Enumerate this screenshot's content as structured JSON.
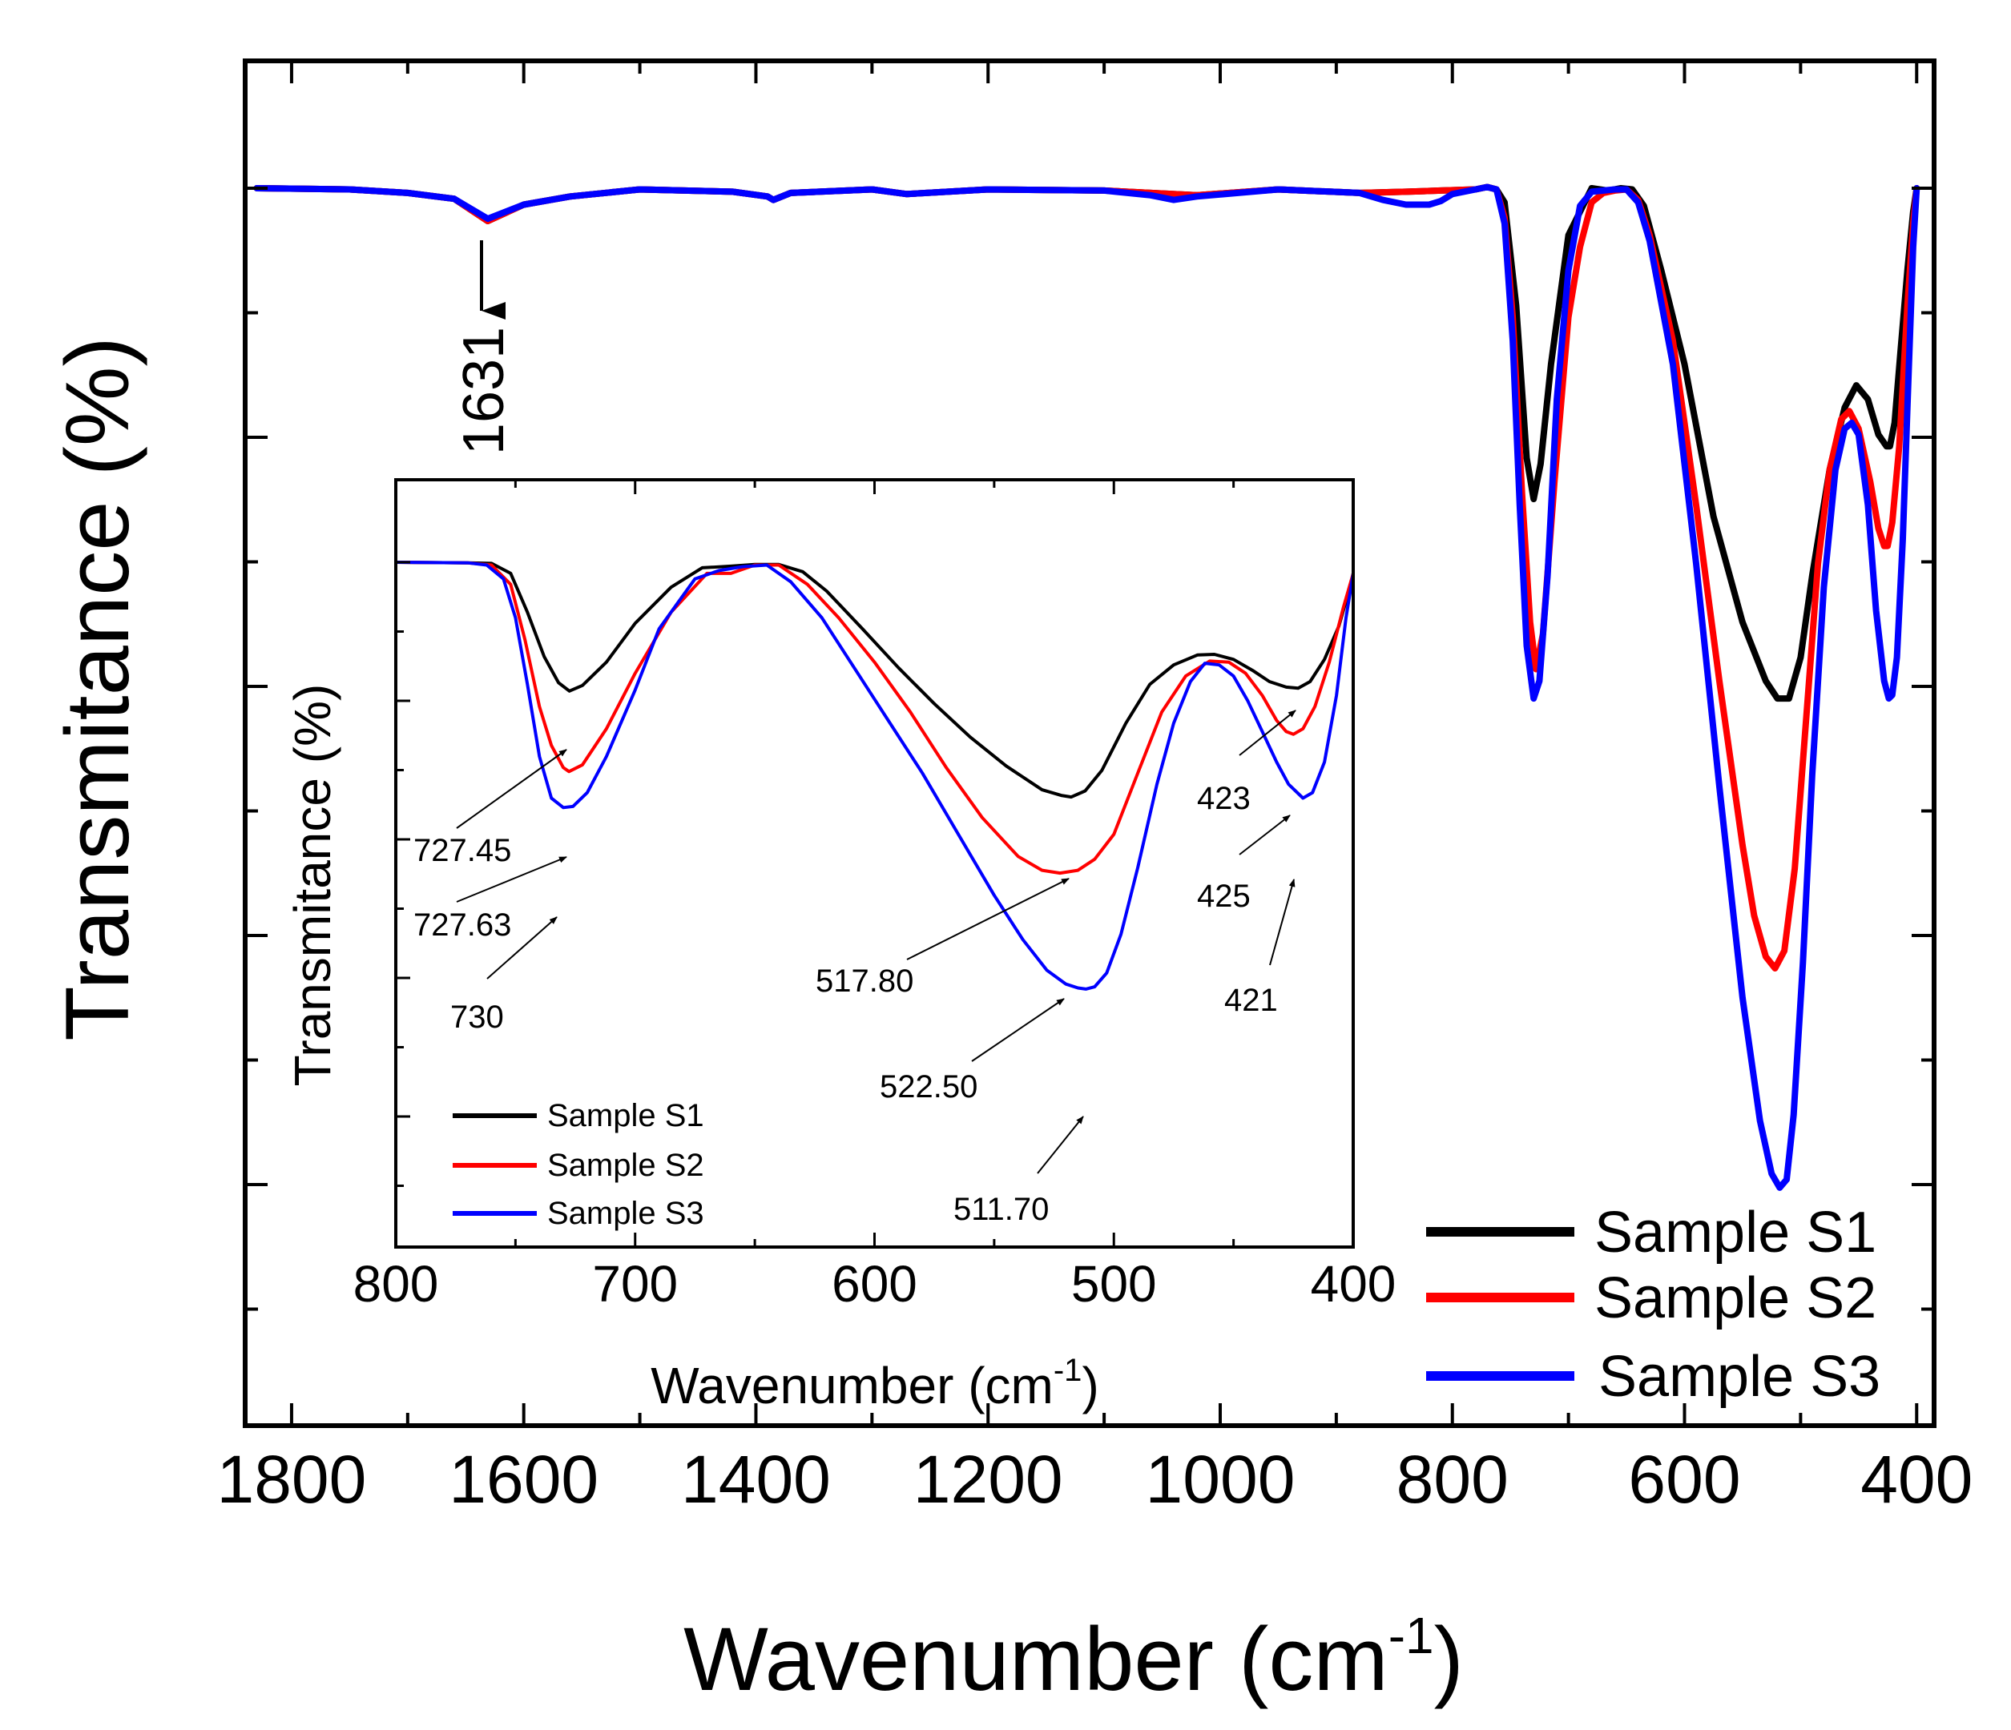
{
  "chart_data": [
    {
      "id": "main",
      "type": "line",
      "title": "",
      "xlabel_main": "Wavenumber (cm",
      "xlabel_sup": "-1",
      "xlabel_close": ")",
      "ylabel": "Transmitance (%)",
      "xlim": [
        1840,
        385
      ],
      "ylim": [
        0,
        100
      ],
      "x_reversed": true,
      "x_major_ticks": [
        1800,
        1600,
        1400,
        1200,
        1000,
        800,
        600,
        400
      ],
      "x_tick_labels": [
        "1800",
        "1600",
        "1400",
        "1200",
        "1000",
        "800",
        "600",
        "400"
      ],
      "y_tick_labels_shown": false,
      "legend_position": "bottom-right",
      "series": [
        {
          "name": "Sample S1",
          "color": "#000000",
          "x": [
            1830,
            1750,
            1700,
            1660,
            1631,
            1600,
            1560,
            1500,
            1420,
            1390,
            1385,
            1370,
            1300,
            1270,
            1200,
            1100,
            1020,
            950,
            880,
            840,
            810,
            780,
            770,
            762,
            755,
            745,
            736,
            730,
            724,
            715,
            700,
            680,
            666,
            655,
            645,
            635,
            620,
            600,
            575,
            550,
            530,
            520,
            510,
            500,
            490,
            475,
            462,
            452,
            442,
            433,
            426,
            423,
            419,
            414,
            408,
            403,
            400
          ],
          "y": [
            100,
            99.9,
            99.6,
            99.1,
            97.2,
            98.6,
            99.3,
            99.9,
            99.7,
            99.3,
            99.0,
            99.6,
            99.9,
            99.5,
            99.9,
            99.8,
            99.4,
            99.9,
            99.6,
            99.7,
            99.8,
            99.9,
            100.1,
            99.9,
            98.8,
            90.0,
            77.0,
            73.5,
            76.5,
            85.0,
            96.0,
            100.0,
            99.8,
            100.0,
            99.9,
            98.5,
            93.0,
            85.0,
            72.0,
            63.0,
            58.0,
            56.5,
            56.5,
            60.0,
            67.0,
            76.0,
            81.3,
            83.2,
            82.0,
            79.0,
            78.0,
            78.0,
            80.0,
            86.0,
            93.0,
            98.0,
            100.0
          ]
        },
        {
          "name": "Sample S2",
          "color": "#ff0000",
          "x": [
            1830,
            1750,
            1700,
            1660,
            1631,
            1600,
            1560,
            1500,
            1420,
            1390,
            1385,
            1370,
            1300,
            1270,
            1200,
            1100,
            1020,
            950,
            880,
            840,
            810,
            780,
            770,
            762,
            755,
            748,
            740,
            733,
            728,
            722,
            712,
            700,
            690,
            680,
            670,
            660,
            650,
            640,
            630,
            610,
            590,
            570,
            550,
            540,
            530,
            522,
            514,
            505,
            495,
            485,
            475,
            465,
            458,
            450,
            440,
            433,
            428,
            425,
            421,
            415,
            408,
            403,
            400
          ],
          "y": [
            100,
            99.9,
            99.6,
            99.1,
            97.2,
            98.6,
            99.3,
            99.9,
            99.7,
            99.3,
            99.0,
            99.6,
            99.9,
            99.5,
            99.9,
            99.8,
            99.4,
            99.9,
            99.6,
            99.7,
            99.8,
            99.9,
            100.1,
            99.9,
            97.5,
            89.0,
            74.0,
            63.0,
            59.0,
            62.0,
            75.0,
            89.0,
            95.0,
            98.8,
            99.6,
            99.8,
            99.9,
            99.0,
            96.0,
            87.0,
            73.0,
            58.0,
            44.0,
            38.0,
            34.5,
            33.5,
            35.0,
            42.0,
            55.0,
            68.0,
            76.0,
            80.3,
            81.0,
            79.5,
            75.0,
            71.0,
            69.5,
            69.5,
            71.5,
            78.0,
            90.0,
            97.0,
            100.0
          ]
        },
        {
          "name": "Sample S3",
          "color": "#0000ff",
          "x": [
            1830,
            1750,
            1700,
            1660,
            1631,
            1600,
            1560,
            1500,
            1420,
            1390,
            1385,
            1370,
            1300,
            1270,
            1200,
            1100,
            1060,
            1040,
            1020,
            950,
            880,
            860,
            840,
            820,
            810,
            800,
            780,
            770,
            762,
            755,
            748,
            742,
            736,
            730,
            725,
            718,
            710,
            700,
            690,
            680,
            670,
            660,
            650,
            640,
            630,
            610,
            590,
            570,
            550,
            535,
            525,
            518,
            512,
            506,
            498,
            490,
            480,
            470,
            462,
            456,
            450,
            442,
            435,
            428,
            424,
            421,
            417,
            412,
            407,
            403,
            400
          ],
          "y": [
            100,
            99.9,
            99.6,
            99.1,
            97.4,
            98.6,
            99.3,
            99.9,
            99.7,
            99.3,
            99.0,
            99.6,
            99.9,
            99.5,
            99.9,
            99.8,
            99.4,
            99.0,
            99.3,
            99.9,
            99.6,
            99.0,
            98.6,
            98.6,
            98.9,
            99.5,
            99.9,
            100.1,
            99.9,
            97.0,
            87.0,
            73.0,
            61.0,
            56.5,
            58.0,
            67.0,
            82.0,
            93.0,
            98.5,
            99.7,
            99.8,
            99.9,
            99.9,
            98.8,
            95.5,
            85.0,
            68.0,
            49.0,
            31.0,
            20.5,
            16.0,
            14.8,
            15.5,
            21.0,
            34.0,
            50.0,
            66.0,
            76.0,
            79.5,
            80.0,
            79.0,
            73.0,
            64.0,
            58.0,
            56.5,
            56.8,
            60.0,
            70.0,
            84.0,
            95.0,
            100.0
          ]
        }
      ],
      "annotations": [
        {
          "text": "1631",
          "x": 1631
        }
      ]
    },
    {
      "id": "inset",
      "type": "line",
      "title": "",
      "xlabel_main": "Wavenumber (cm",
      "xlabel_sup": "-1",
      "xlabel_close": ")",
      "ylabel": "Transmitance (%)",
      "xlim": [
        800,
        400
      ],
      "ylim": [
        0,
        100
      ],
      "x_reversed": true,
      "x_major_ticks": [
        800,
        700,
        600,
        500,
        400
      ],
      "x_tick_labels": [
        "800",
        "700",
        "600",
        "500",
        "400"
      ],
      "y_tick_labels_shown": false,
      "legend_position": "bottom-left",
      "series": [
        {
          "name": "Sample S1",
          "color": "#000000",
          "x": [
            800,
            770,
            760,
            752,
            745,
            738,
            732,
            727.45,
            722,
            712,
            700,
            685,
            672,
            660,
            650,
            640,
            630,
            620,
            605,
            590,
            575,
            560,
            545,
            530,
            522,
            517.8,
            512,
            505,
            495,
            485,
            475,
            465,
            458,
            450,
            442,
            435,
            428,
            423,
            418,
            412,
            406,
            401,
            400
          ],
          "y": [
            100,
            99.9,
            99.8,
            98.0,
            91.0,
            83.0,
            78.3,
            76.8,
            77.8,
            82.0,
            89.0,
            95.5,
            99.0,
            99.3,
            99.6,
            99.6,
            98.3,
            94.8,
            88.0,
            81.0,
            74.5,
            68.5,
            63.3,
            59.0,
            58.0,
            57.7,
            58.8,
            62.5,
            71.0,
            78.0,
            81.5,
            83.3,
            83.4,
            82.5,
            80.5,
            78.5,
            77.5,
            77.3,
            78.5,
            82.5,
            88.5,
            96.0,
            98.0
          ]
        },
        {
          "name": "Sample S2",
          "color": "#ff0000",
          "x": [
            800,
            770,
            760,
            752,
            746,
            740,
            735,
            730,
            727.63,
            722,
            712,
            700,
            685,
            670,
            660,
            650,
            640,
            628,
            615,
            600,
            585,
            570,
            555,
            540,
            530,
            522.5,
            515,
            508,
            500,
            490,
            480,
            470,
            460,
            452,
            445,
            438,
            432,
            428,
            425,
            421,
            416,
            410,
            404,
            400
          ],
          "y": [
            100,
            99.9,
            99.5,
            96.0,
            86.0,
            74.0,
            67.0,
            63.0,
            62.3,
            63.5,
            70.0,
            80.0,
            91.0,
            98.0,
            98.0,
            99.5,
            99.5,
            96.0,
            90.0,
            82.0,
            73.0,
            63.0,
            54.0,
            47.0,
            44.5,
            44.0,
            44.5,
            46.5,
            51.0,
            62.0,
            73.0,
            79.5,
            82.2,
            82.0,
            80.0,
            76.0,
            71.5,
            69.5,
            69.0,
            70.0,
            74.0,
            82.0,
            92.0,
            98.0
          ]
        },
        {
          "name": "Sample S3",
          "color": "#0000ff",
          "x": [
            800,
            770,
            762,
            755,
            750,
            745,
            740,
            735,
            730,
            726,
            720,
            712,
            700,
            690,
            675,
            665,
            655,
            645,
            635,
            622,
            610,
            595,
            580,
            565,
            550,
            538,
            528,
            520,
            515,
            511.7,
            508,
            503,
            497,
            490,
            482,
            475,
            468,
            462,
            456,
            450,
            444,
            438,
            432,
            427,
            421,
            417,
            412,
            407,
            403,
            400
          ],
          "y": [
            100,
            99.9,
            99.5,
            97.0,
            90.0,
            78.0,
            65.0,
            57.5,
            55.8,
            56.0,
            58.5,
            65.0,
            77.0,
            88.0,
            97.0,
            98.5,
            99.2,
            99.5,
            96.5,
            90.0,
            82.0,
            72.0,
            62.0,
            51.0,
            40.0,
            32.0,
            26.5,
            24.0,
            23.3,
            23.1,
            23.5,
            26.0,
            33.0,
            45.0,
            60.0,
            71.0,
            78.5,
            81.8,
            81.5,
            79.5,
            75.0,
            69.5,
            64.0,
            60.0,
            57.5,
            58.5,
            64.0,
            76.0,
            90.0,
            98.0
          ]
        }
      ],
      "annotations": [
        {
          "text": "727.45",
          "series": "Sample S1",
          "x": 727.45
        },
        {
          "text": "727.63",
          "series": "Sample S2",
          "x": 727.63
        },
        {
          "text": "730",
          "series": "Sample S3",
          "x": 730
        },
        {
          "text": "517.80",
          "series": "Sample S1",
          "x": 517.8
        },
        {
          "text": "522.50",
          "series": "Sample S2",
          "x": 522.5
        },
        {
          "text": "511.70",
          "series": "Sample S3",
          "x": 511.7
        },
        {
          "text": "423",
          "series": "Sample S1",
          "x": 423
        },
        {
          "text": "425",
          "series": "Sample S2",
          "x": 425
        },
        {
          "text": "421",
          "series": "Sample S3",
          "x": 421
        }
      ]
    }
  ]
}
